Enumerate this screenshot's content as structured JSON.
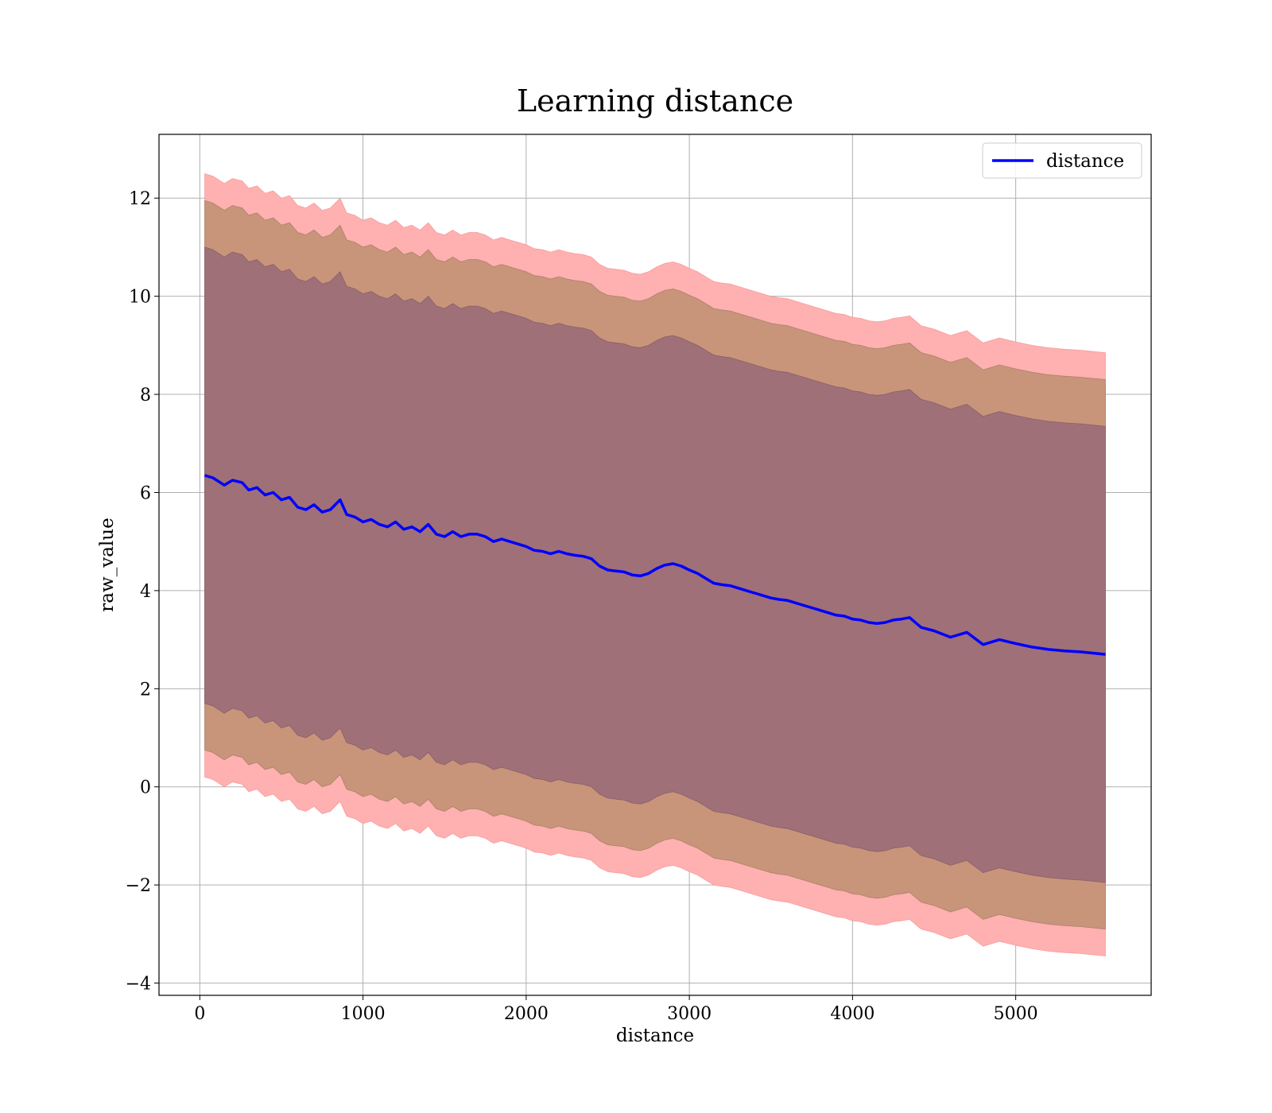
{
  "chart_data": {
    "type": "line",
    "title": "Learning distance",
    "xlabel": "distance",
    "ylabel": "raw_value",
    "xlim": [
      -250,
      5830
    ],
    "ylim": [
      -4.25,
      13.3
    ],
    "xticks": [
      0,
      1000,
      2000,
      3000,
      4000,
      5000
    ],
    "yticks": [
      -4,
      -2,
      0,
      2,
      4,
      6,
      8,
      10,
      12
    ],
    "xtick_labels": [
      "0",
      "1000",
      "2000",
      "3000",
      "4000",
      "5000"
    ],
    "ytick_labels": [
      "−4",
      "−2",
      "0",
      "2",
      "4",
      "6",
      "8",
      "10",
      "12"
    ],
    "grid": true,
    "legend": {
      "placement": "top-right",
      "entries": [
        "distance"
      ]
    },
    "colors": {
      "line": "#0000ff",
      "band_outer": "#ffb0b0",
      "band_middle": "#c8957a",
      "band_inner": "#a07078",
      "grid": "#b0b0b0"
    },
    "x": [
      30,
      80,
      150,
      200,
      260,
      300,
      350,
      400,
      450,
      500,
      550,
      600,
      650,
      700,
      750,
      800,
      860,
      900,
      950,
      1000,
      1050,
      1100,
      1150,
      1200,
      1250,
      1300,
      1350,
      1400,
      1450,
      1500,
      1550,
      1600,
      1650,
      1700,
      1750,
      1800,
      1850,
      1900,
      1950,
      2000,
      2050,
      2100,
      2150,
      2200,
      2250,
      2300,
      2350,
      2400,
      2450,
      2500,
      2550,
      2600,
      2650,
      2700,
      2750,
      2800,
      2850,
      2900,
      2950,
      3000,
      3050,
      3100,
      3150,
      3200,
      3250,
      3300,
      3350,
      3400,
      3450,
      3500,
      3550,
      3600,
      3650,
      3700,
      3750,
      3800,
      3850,
      3900,
      3950,
      4000,
      4050,
      4100,
      4150,
      4200,
      4250,
      4300,
      4350,
      4420,
      4500,
      4600,
      4700,
      4800,
      4900,
      5000,
      5100,
      5200,
      5300,
      5400,
      5550
    ],
    "series": [
      {
        "name": "distance",
        "values": [
          6.35,
          6.3,
          6.15,
          6.25,
          6.2,
          6.05,
          6.1,
          5.95,
          6.0,
          5.85,
          5.9,
          5.7,
          5.65,
          5.75,
          5.6,
          5.65,
          5.85,
          5.55,
          5.5,
          5.4,
          5.45,
          5.35,
          5.3,
          5.4,
          5.25,
          5.3,
          5.2,
          5.35,
          5.15,
          5.1,
          5.2,
          5.1,
          5.15,
          5.15,
          5.1,
          5.0,
          5.05,
          5.0,
          4.95,
          4.9,
          4.82,
          4.8,
          4.75,
          4.8,
          4.75,
          4.72,
          4.7,
          4.65,
          4.5,
          4.42,
          4.4,
          4.38,
          4.32,
          4.3,
          4.35,
          4.45,
          4.52,
          4.55,
          4.5,
          4.42,
          4.35,
          4.25,
          4.15,
          4.12,
          4.1,
          4.05,
          4.0,
          3.95,
          3.9,
          3.85,
          3.82,
          3.8,
          3.75,
          3.7,
          3.65,
          3.6,
          3.55,
          3.5,
          3.48,
          3.42,
          3.4,
          3.35,
          3.33,
          3.35,
          3.4,
          3.42,
          3.45,
          3.25,
          3.18,
          3.05,
          3.15,
          2.9,
          3.0,
          2.92,
          2.85,
          2.8,
          2.77,
          2.75,
          2.7
        ]
      }
    ],
    "bands": [
      {
        "level": "outer",
        "upper_offset": 6.15,
        "lower_offset": 6.15
      },
      {
        "level": "middle",
        "upper_offset": 5.6,
        "lower_offset": 5.6
      },
      {
        "level": "inner",
        "upper_offset": 4.65,
        "lower_offset": 4.65
      }
    ]
  }
}
